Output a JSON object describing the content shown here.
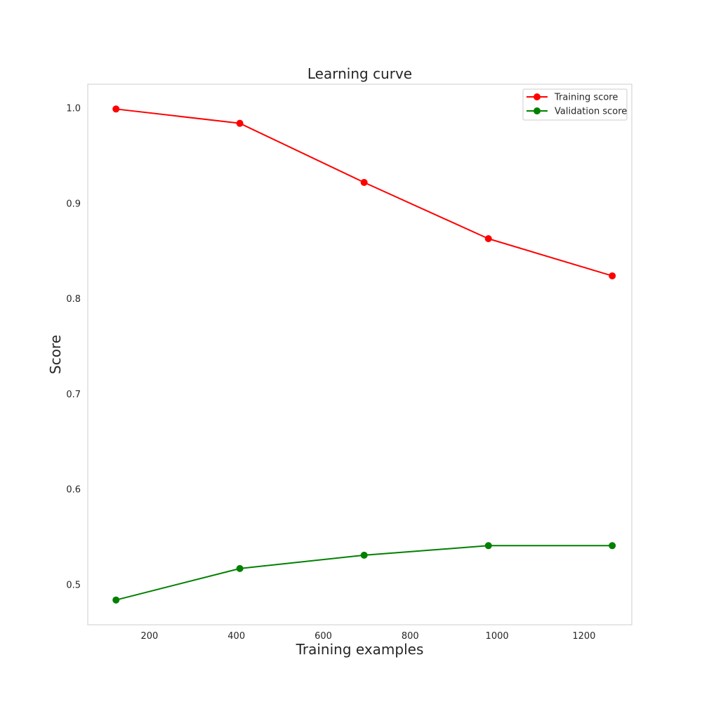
{
  "chart_data": {
    "type": "line",
    "title": "Learning curve",
    "xlabel": "Training examples",
    "ylabel": "Score",
    "x": [
      123,
      408,
      694,
      980,
      1265
    ],
    "series": [
      {
        "name": "Training score",
        "color": "#ff0000",
        "values": [
          0.999,
          0.984,
          0.922,
          0.863,
          0.824
        ]
      },
      {
        "name": "Validation score",
        "color": "#008000",
        "values": [
          0.484,
          0.517,
          0.531,
          0.541,
          0.541
        ]
      }
    ],
    "xlim": [
      58,
      1310
    ],
    "ylim": [
      0.458,
      1.025
    ],
    "xticks": [
      200,
      400,
      600,
      800,
      1000,
      1200
    ],
    "xtick_labels": [
      "200",
      "400",
      "600",
      "800",
      "1000",
      "1200"
    ],
    "yticks": [
      0.5,
      0.6,
      0.7,
      0.8,
      0.9,
      1.0
    ],
    "ytick_labels": [
      "0.5",
      "0.6",
      "0.7",
      "0.8",
      "0.9",
      "1.0"
    ],
    "grid": false,
    "legend_position": "top-right",
    "marker": "circle"
  }
}
